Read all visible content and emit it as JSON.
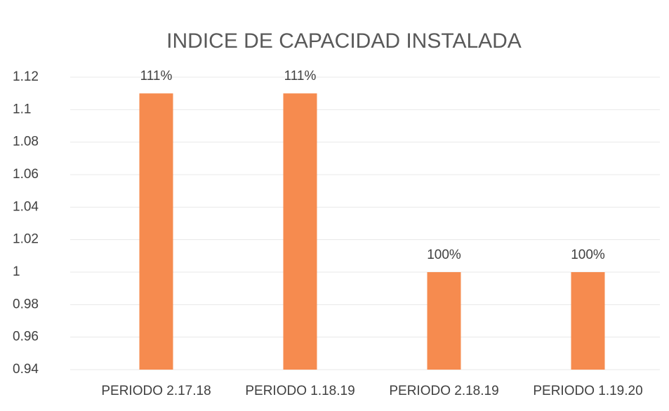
{
  "chart_data": {
    "type": "bar",
    "title": "INDICE DE CAPACIDAD INSTALADA",
    "categories": [
      "PERIODO 2.17.18",
      "PERIODO 1.18.19",
      "PERIODO 2.18.19",
      "PERIODO 1.19.20"
    ],
    "values": [
      1.11,
      1.11,
      1.0,
      1.0
    ],
    "value_labels": [
      "111%",
      "111%",
      "100%",
      "100%"
    ],
    "color": "#f68b4f",
    "ylim": [
      0.94,
      1.12
    ],
    "yticks": [
      0.94,
      0.96,
      0.98,
      1,
      1.02,
      1.04,
      1.06,
      1.08,
      1.1,
      1.12
    ],
    "grid": true
  }
}
